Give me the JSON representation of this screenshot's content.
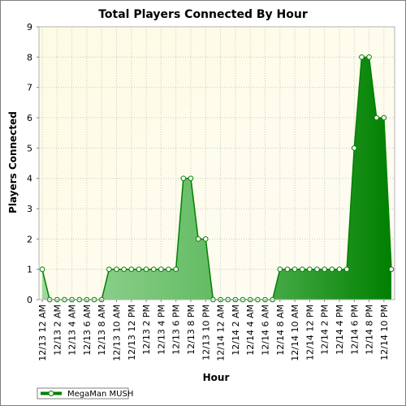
{
  "chart_data": {
    "type": "area",
    "title": "Total Players Connected By Hour",
    "xlabel": "Hour",
    "ylabel": "Players Connected",
    "ylim": [
      0,
      9
    ],
    "yticks": [
      0,
      1,
      2,
      3,
      4,
      5,
      6,
      7,
      8,
      9
    ],
    "grid": true,
    "legend_position": "bottom-left",
    "x": [
      "12/13 12 AM",
      "12/13 1 AM",
      "12/13 2 AM",
      "12/13 3 AM",
      "12/13 4 AM",
      "12/13 5 AM",
      "12/13 6 AM",
      "12/13 7 AM",
      "12/13 8 AM",
      "12/13 9 AM",
      "12/13 10 AM",
      "12/13 11 AM",
      "12/13 12 PM",
      "12/13 1 PM",
      "12/13 2 PM",
      "12/13 3 PM",
      "12/13 4 PM",
      "12/13 5 PM",
      "12/13 6 PM",
      "12/13 7 PM",
      "12/13 8 PM",
      "12/13 9 PM",
      "12/13 10 PM",
      "12/13 11 PM",
      "12/14 12 AM",
      "12/14 1 AM",
      "12/14 2 AM",
      "12/14 3 AM",
      "12/14 4 AM",
      "12/14 5 AM",
      "12/14 6 AM",
      "12/14 7 AM",
      "12/14 8 AM",
      "12/14 9 AM",
      "12/14 10 AM",
      "12/14 11 AM",
      "12/14 12 PM",
      "12/14 1 PM",
      "12/14 2 PM",
      "12/14 3 PM",
      "12/14 4 PM",
      "12/14 5 PM",
      "12/14 6 PM",
      "12/14 7 PM",
      "12/14 8 PM",
      "12/14 9 PM",
      "12/14 10 PM",
      "12/14 11 PM"
    ],
    "series": [
      {
        "name": "MegaMan MUSH",
        "color": "#008000",
        "values": [
          1,
          0,
          0,
          0,
          0,
          0,
          0,
          0,
          0,
          1,
          1,
          1,
          1,
          1,
          1,
          1,
          1,
          1,
          1,
          4,
          4,
          2,
          2,
          0,
          0,
          0,
          0,
          0,
          0,
          0,
          0,
          0,
          1,
          1,
          1,
          1,
          1,
          1,
          1,
          1,
          1,
          1,
          5,
          8,
          8,
          6,
          6,
          1
        ]
      }
    ]
  }
}
